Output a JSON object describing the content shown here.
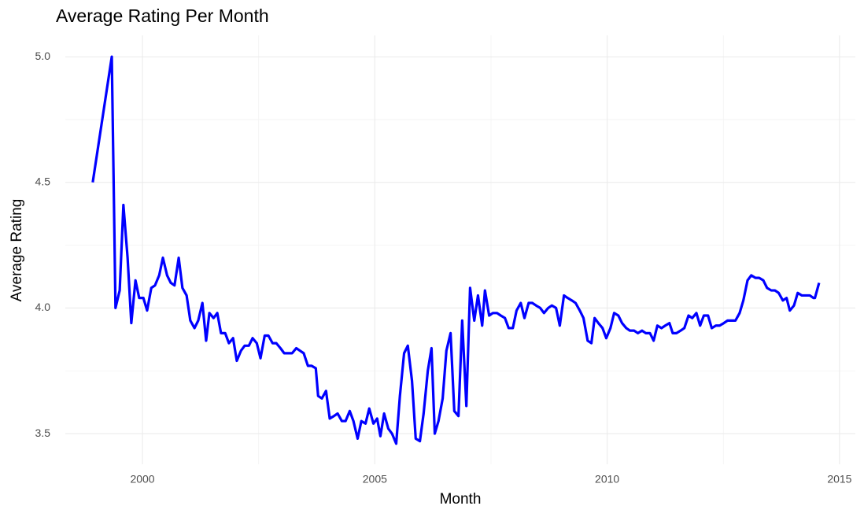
{
  "chart_data": {
    "type": "line",
    "title": "Average Rating Per Month",
    "x_label": "Month",
    "y_label": "Average Rating",
    "color": "#0000ff",
    "grid": true,
    "xlim": [
      1998.34,
      2015.34
    ],
    "xticks": [
      2000,
      2005,
      2010,
      2015
    ],
    "ylim": [
      3.378,
      5.085
    ],
    "yticks": [
      3.5,
      {
        "value": 4,
        "label": "4.0"
      },
      4.5,
      {
        "value": 5,
        "label": "5.0"
      }
    ],
    "x": [
      1998.93,
      1999.34,
      1999.42,
      1999.51,
      1999.59,
      1999.68,
      1999.76,
      1999.85,
      1999.93,
      2000.02,
      2000.1,
      2000.19,
      2000.27,
      2000.36,
      2000.44,
      2000.53,
      2000.61,
      2000.69,
      2000.78,
      2000.86,
      2000.95,
      2001.03,
      2001.12,
      2001.2,
      2001.29,
      2001.37,
      2001.44,
      2001.53,
      2001.61,
      2001.69,
      2001.78,
      2001.86,
      2001.95,
      2002.03,
      2002.12,
      2002.2,
      2002.29,
      2002.37,
      2002.46,
      2002.54,
      2002.63,
      2002.71,
      2002.8,
      2002.88,
      2002.97,
      2003.05,
      2003.14,
      2003.22,
      2003.31,
      2003.39,
      2003.47,
      2003.56,
      2003.64,
      2003.73,
      2003.78,
      2003.86,
      2003.95,
      2004.03,
      2004.12,
      2004.2,
      2004.29,
      2004.37,
      2004.46,
      2004.54,
      2004.63,
      2004.71,
      2004.8,
      2004.88,
      2004.97,
      2005.05,
      2005.12,
      2005.2,
      2005.29,
      2005.37,
      2005.46,
      2005.54,
      2005.63,
      2005.71,
      2005.8,
      2005.88,
      2005.97,
      2006.05,
      2006.14,
      2006.22,
      2006.29,
      2006.37,
      2006.46,
      2006.54,
      2006.63,
      2006.71,
      2006.8,
      2006.88,
      2006.97,
      2007.05,
      2007.14,
      2007.22,
      2007.31,
      2007.37,
      2007.46,
      2007.54,
      2007.63,
      2007.71,
      2007.8,
      2007.88,
      2007.97,
      2008.05,
      2008.14,
      2008.22,
      2008.31,
      2008.39,
      2008.47,
      2008.56,
      2008.64,
      2008.73,
      2008.81,
      2008.9,
      2008.98,
      2009.07,
      2009.15,
      2009.24,
      2009.32,
      2009.41,
      2009.49,
      2009.58,
      2009.66,
      2009.73,
      2009.81,
      2009.9,
      2009.98,
      2010.07,
      2010.15,
      2010.24,
      2010.32,
      2010.41,
      2010.49,
      2010.58,
      2010.66,
      2010.75,
      2010.83,
      2010.92,
      2011.0,
      2011.08,
      2011.17,
      2011.25,
      2011.34,
      2011.41,
      2011.49,
      2011.58,
      2011.66,
      2011.75,
      2011.83,
      2011.92,
      2012.0,
      2012.08,
      2012.17,
      2012.25,
      2012.34,
      2012.42,
      2012.51,
      2012.59,
      2012.68,
      2012.76,
      2012.85,
      2012.93,
      2013.02,
      2013.1,
      2013.19,
      2013.27,
      2013.36,
      2013.44,
      2013.53,
      2013.61,
      2013.69,
      2013.78,
      2013.86,
      2013.93,
      2014.02,
      2014.1,
      2014.19,
      2014.27,
      2014.36,
      2014.44,
      2014.47,
      2014.56
    ],
    "values": [
      4.5,
      5.0,
      4.0,
      4.07,
      4.41,
      4.2,
      3.94,
      4.11,
      4.04,
      4.04,
      3.99,
      4.08,
      4.09,
      4.13,
      4.2,
      4.13,
      4.1,
      4.09,
      4.2,
      4.08,
      4.05,
      3.95,
      3.92,
      3.95,
      4.02,
      3.87,
      3.98,
      3.96,
      3.98,
      3.9,
      3.9,
      3.86,
      3.88,
      3.79,
      3.83,
      3.85,
      3.85,
      3.88,
      3.86,
      3.8,
      3.89,
      3.89,
      3.86,
      3.86,
      3.84,
      3.82,
      3.82,
      3.82,
      3.84,
      3.83,
      3.82,
      3.77,
      3.77,
      3.76,
      3.65,
      3.64,
      3.67,
      3.56,
      3.57,
      3.58,
      3.55,
      3.55,
      3.59,
      3.55,
      3.48,
      3.55,
      3.54,
      3.6,
      3.54,
      3.56,
      3.49,
      3.58,
      3.52,
      3.5,
      3.46,
      3.65,
      3.82,
      3.85,
      3.71,
      3.48,
      3.47,
      3.58,
      3.75,
      3.84,
      3.5,
      3.55,
      3.64,
      3.83,
      3.9,
      3.59,
      3.57,
      3.95,
      3.61,
      4.08,
      3.95,
      4.05,
      3.93,
      4.07,
      3.97,
      3.98,
      3.98,
      3.97,
      3.96,
      3.92,
      3.92,
      3.99,
      4.02,
      3.96,
      4.02,
      4.02,
      4.01,
      4.0,
      3.98,
      4.0,
      4.01,
      4.0,
      3.93,
      4.05,
      4.04,
      4.03,
      4.02,
      3.99,
      3.96,
      3.87,
      3.86,
      3.96,
      3.94,
      3.92,
      3.88,
      3.92,
      3.98,
      3.97,
      3.94,
      3.92,
      3.91,
      3.91,
      3.9,
      3.91,
      3.9,
      3.9,
      3.87,
      3.93,
      3.92,
      3.93,
      3.94,
      3.9,
      3.9,
      3.91,
      3.92,
      3.97,
      3.96,
      3.98,
      3.93,
      3.97,
      3.97,
      3.92,
      3.93,
      3.93,
      3.94,
      3.95,
      3.95,
      3.95,
      3.98,
      4.03,
      4.11,
      4.13,
      4.12,
      4.12,
      4.11,
      4.08,
      4.07,
      4.07,
      4.06,
      4.03,
      4.04,
      3.99,
      4.01,
      4.06,
      4.05,
      4.05,
      4.05,
      4.04,
      4.04,
      4.1
    ]
  }
}
